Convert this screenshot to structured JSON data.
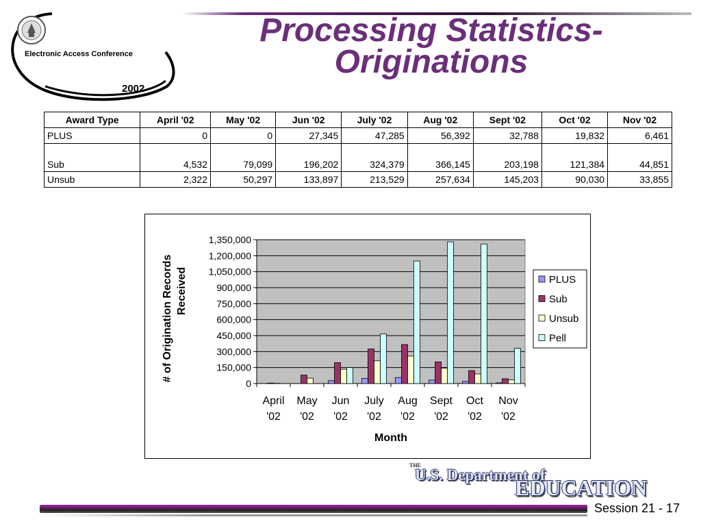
{
  "logo": {
    "text": "Electronic Access Conference",
    "year": "2002",
    "emblem": "department-seal-icon"
  },
  "title": {
    "line1": "Processing Statistics-",
    "line2": "Originations"
  },
  "table": {
    "headers": [
      "Award Type",
      "April '02",
      "May '02",
      "Jun '02",
      "July '02",
      "Aug '02",
      "Sept '02",
      "Oct '02",
      "Nov '02"
    ],
    "rows": [
      {
        "label": "PLUS",
        "values": [
          "0",
          "0",
          "27,345",
          "47,285",
          "56,392",
          "32,788",
          "19,832",
          "6,461"
        ]
      },
      {
        "label": "Sub",
        "values": [
          "4,532",
          "79,099",
          "196,202",
          "324,379",
          "366,145",
          "203,198",
          "121,384",
          "44,851"
        ]
      },
      {
        "label": "Unsub",
        "values": [
          "2,322",
          "50,297",
          "133,897",
          "213,529",
          "257,634",
          "145,203",
          "90,030",
          "33,855"
        ]
      }
    ]
  },
  "chart_data": {
    "type": "bar",
    "categories": [
      [
        "April",
        "'02"
      ],
      [
        "May",
        "'02"
      ],
      [
        "Jun",
        "'02"
      ],
      [
        "July",
        "'02"
      ],
      [
        "Aug",
        "'02"
      ],
      [
        "Sept",
        "'02"
      ],
      [
        "Oct",
        "'02"
      ],
      [
        "Nov",
        "'02"
      ]
    ],
    "series": [
      {
        "name": "PLUS",
        "color": "#9999ff",
        "values": [
          0,
          0,
          27345,
          47285,
          56392,
          32788,
          19832,
          6461
        ]
      },
      {
        "name": "Sub",
        "color": "#993366",
        "values": [
          4532,
          79099,
          196202,
          324379,
          366145,
          203198,
          121384,
          44851
        ]
      },
      {
        "name": "Unsub",
        "color": "#ffffcc",
        "values": [
          2322,
          50297,
          133897,
          213529,
          257634,
          145203,
          90030,
          33855
        ]
      },
      {
        "name": "Pell",
        "color": "#ccffff",
        "values": [
          0,
          0,
          150000,
          465000,
          1150000,
          1330000,
          1310000,
          330000
        ]
      }
    ],
    "ylabel": [
      "# of Origination Records",
      "Received"
    ],
    "xlabel": "Month",
    "ylim": [
      0,
      1350000
    ],
    "yticks": [
      0,
      150000,
      300000,
      450000,
      600000,
      750000,
      900000,
      1050000,
      1200000,
      1350000
    ],
    "ytick_labels": [
      "0",
      "150,000",
      "300,000",
      "450,000",
      "600,000",
      "750,000",
      "900,000",
      "1,050,000",
      "1,200,000",
      "1,350,000"
    ],
    "plot_background": "#c0c0c0",
    "grid": true,
    "legend": "right"
  },
  "footer": {
    "the": "THE",
    "dept": "U.S. Department of",
    "education": "EDUCATION",
    "session": "Session 21 -  17"
  }
}
